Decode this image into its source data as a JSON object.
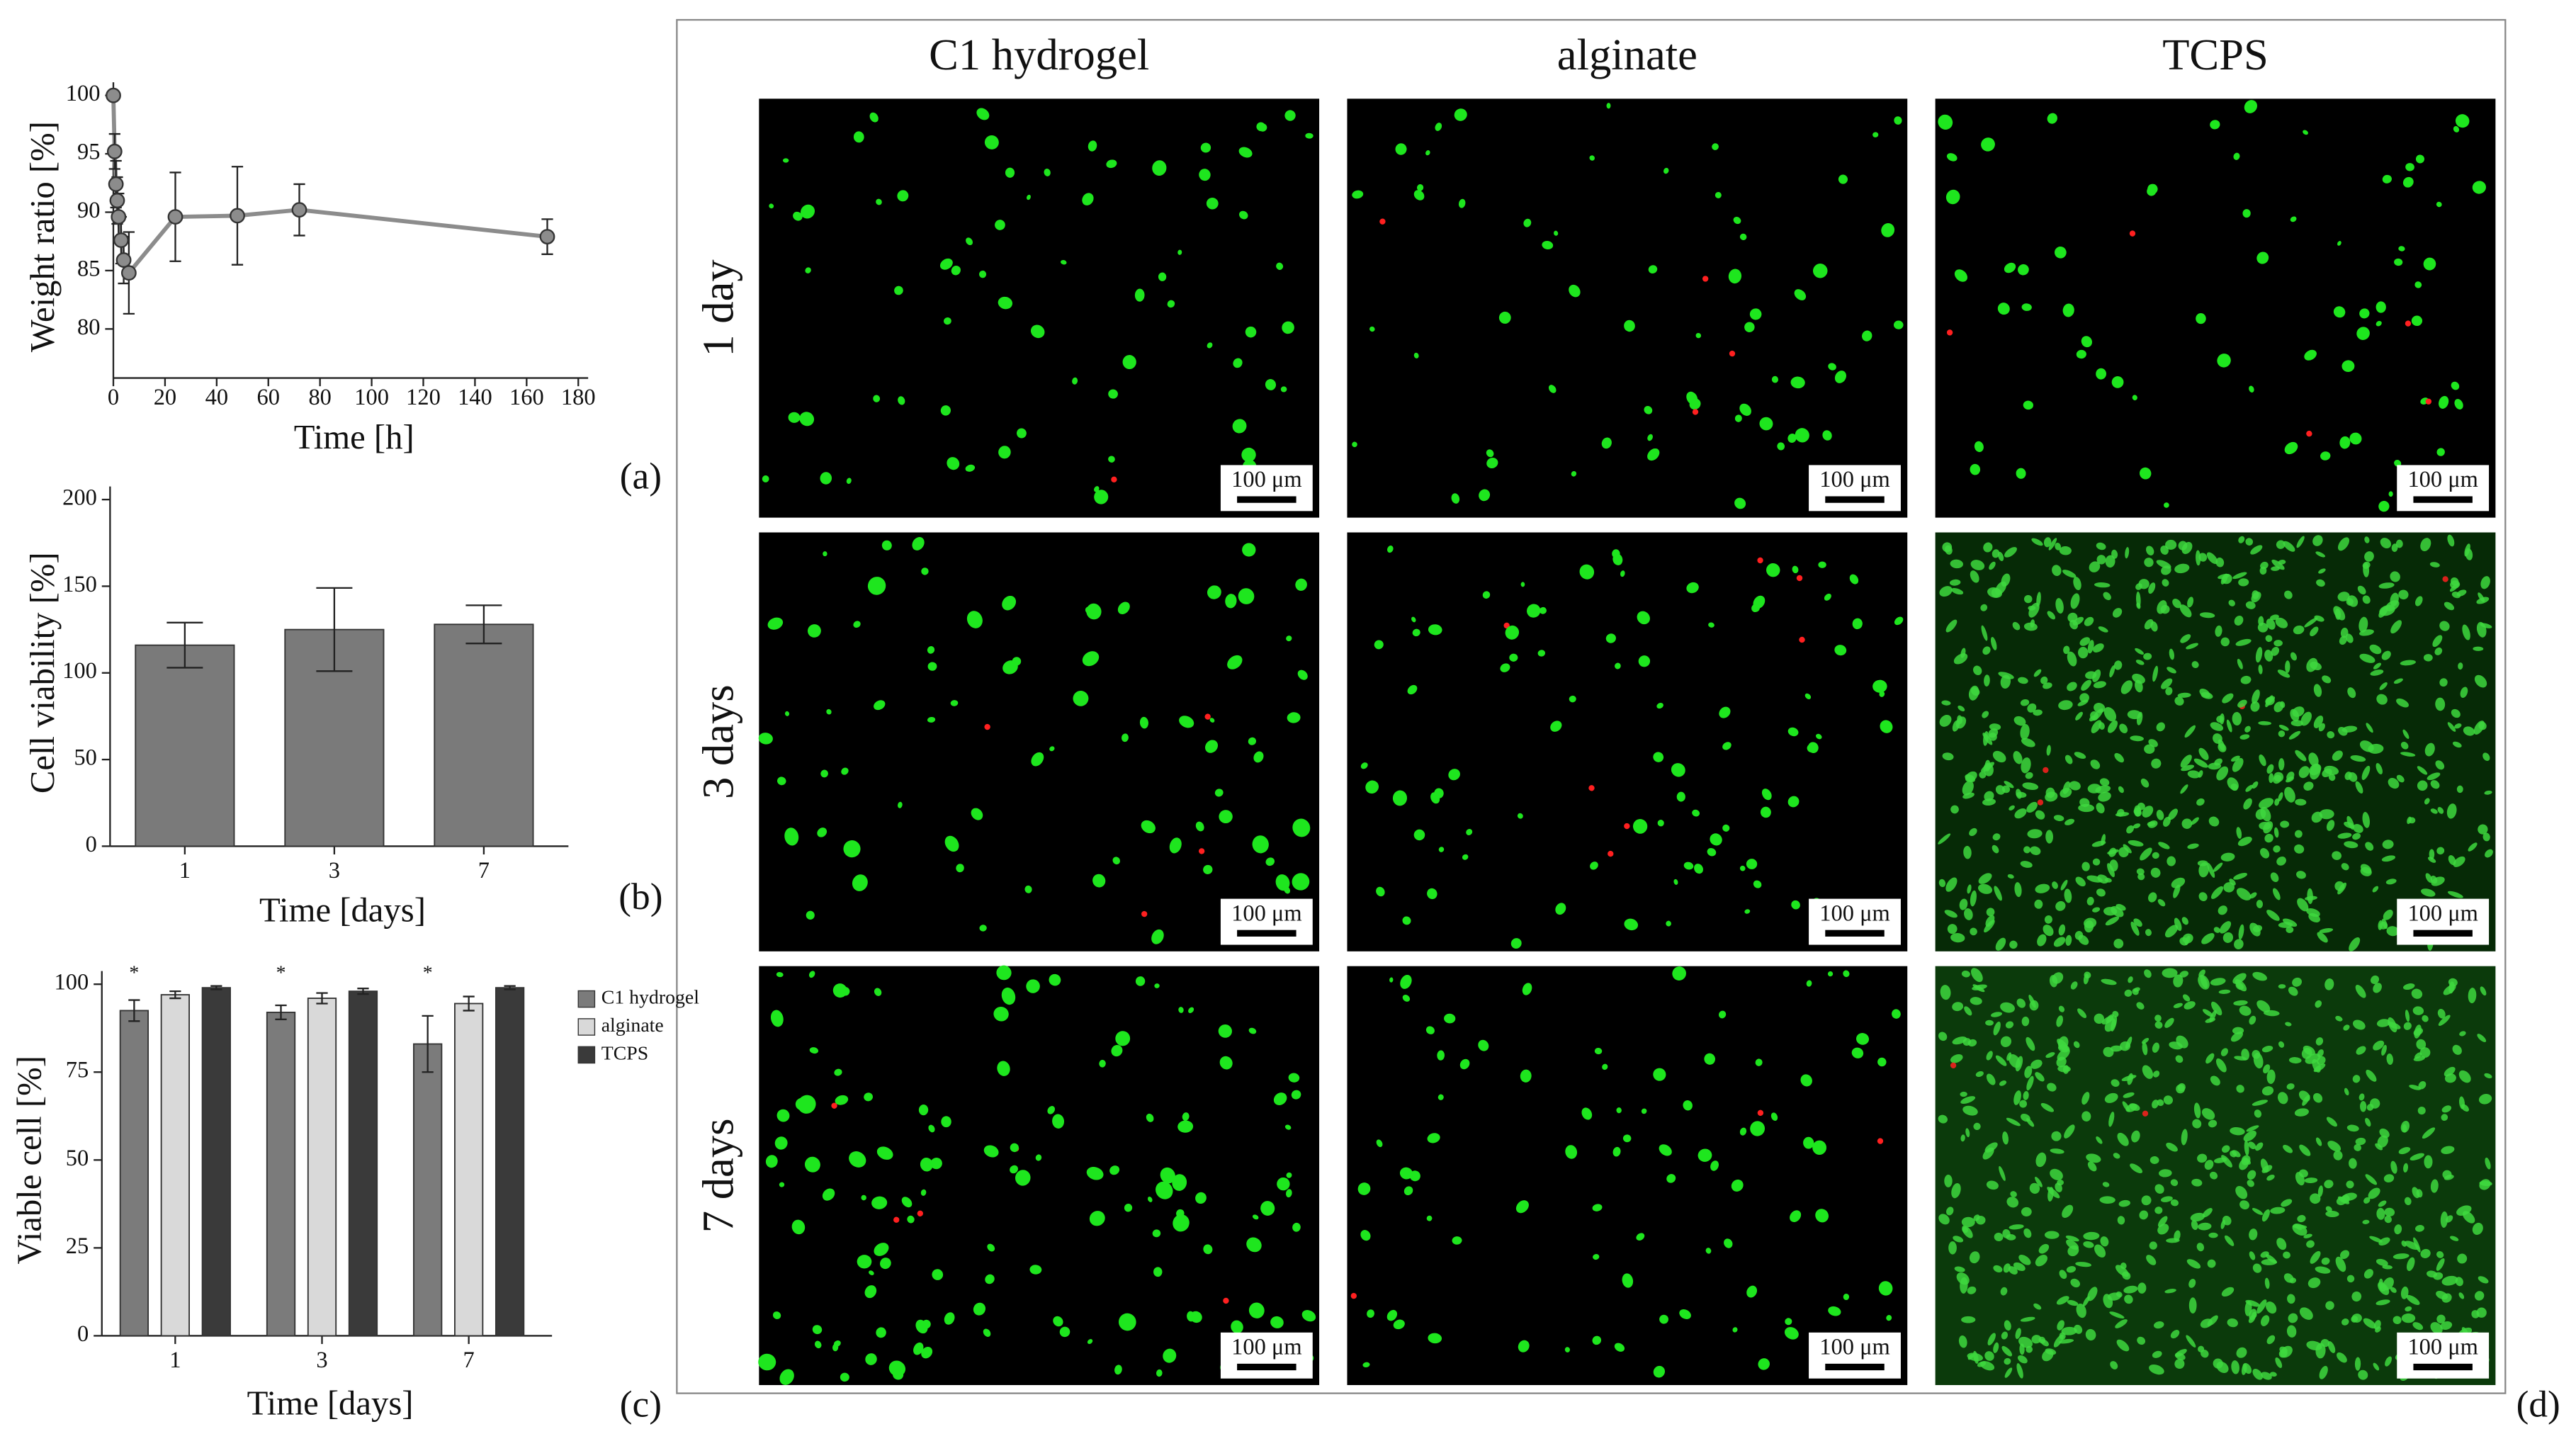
{
  "chart_data": [
    {
      "type": "line",
      "xlabel": "Time [h]",
      "ylabel": "Weight ratio [%]",
      "x": [
        0,
        0.5,
        1,
        1.5,
        2,
        3,
        4,
        6,
        24,
        48,
        72,
        168
      ],
      "series": [
        {
          "color": "#8c8c8c",
          "values": [
            100,
            95.2,
            92.4,
            91,
            89.6,
            87.6,
            85.9,
            84.8,
            89.6,
            89.7,
            90.2,
            87.9
          ],
          "errors": [
            0.2,
            1.5,
            2,
            2,
            2,
            2,
            2,
            3.5,
            3.8,
            4.2,
            2.2,
            1.5
          ]
        }
      ],
      "xlim": [
        0,
        180
      ],
      "xticks": [
        0,
        20,
        40,
        60,
        80,
        100,
        120,
        140,
        160,
        180
      ],
      "ylim": [
        75.8,
        100
      ],
      "yticks": [
        80,
        85,
        90,
        95,
        100
      ]
    },
    {
      "type": "bar",
      "xlabel": "Time [days]",
      "ylabel": "Cell viability [%]",
      "categories": [
        "1",
        "3",
        "7"
      ],
      "series": [
        {
          "color": "#7a7a7a",
          "values": [
            116,
            125,
            128
          ],
          "errors": [
            13,
            24,
            11
          ]
        }
      ],
      "ylim": [
        0,
        200
      ],
      "yticks": [
        0,
        50,
        100,
        150,
        200
      ]
    },
    {
      "type": "bar",
      "xlabel": "Time [days]",
      "ylabel": "Viable cell [%]",
      "categories": [
        "1",
        "3",
        "7"
      ],
      "series": [
        {
          "name": "C1 hydrogel",
          "color": "#7b7b7b",
          "values": [
            92.5,
            92,
            83
          ],
          "errors": [
            3,
            2,
            8
          ]
        },
        {
          "name": "alginate",
          "color": "#d9d9d9",
          "values": [
            97,
            96,
            94.5
          ],
          "errors": [
            1,
            1.5,
            2
          ]
        },
        {
          "name": "TCPS",
          "color": "#3a3a3a",
          "values": [
            99,
            98,
            99
          ],
          "errors": [
            0.5,
            0.8,
            0.5
          ]
        }
      ],
      "significance_marks": [
        "*",
        "*",
        "*"
      ],
      "ylim": [
        0,
        100
      ],
      "yticks": [
        0,
        25,
        50,
        75,
        100
      ],
      "legend": "right"
    }
  ],
  "figure": {
    "panel_labels": [
      "(a)",
      "(b)",
      "(c)",
      "(d)"
    ],
    "columns": [
      "C1 hydrogel",
      "alginate",
      "TCPS"
    ],
    "rows": [
      "1 day",
      "3 days",
      "7 days"
    ],
    "scale_bar": "100 μm"
  }
}
